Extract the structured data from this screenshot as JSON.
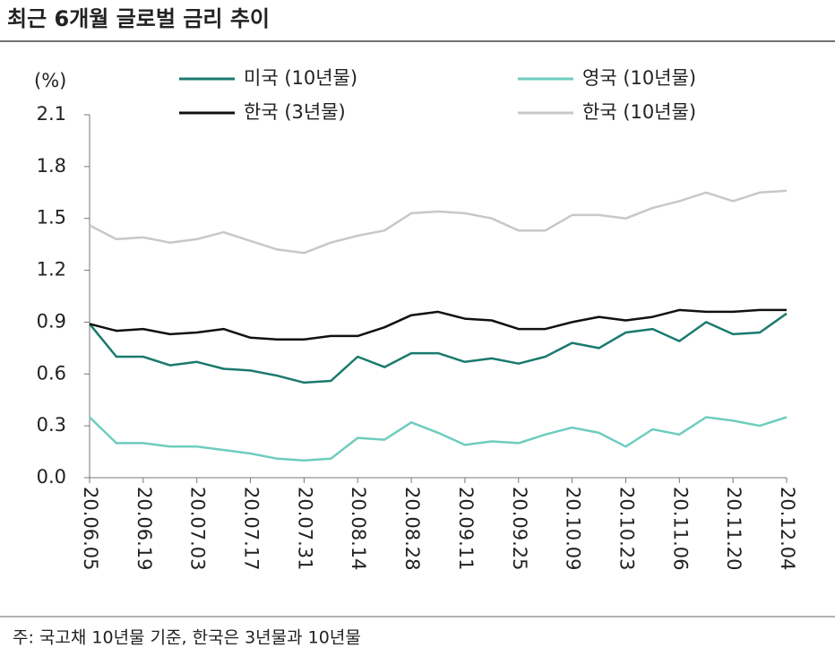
{
  "chart_data": {
    "type": "line",
    "title": "최근 6개월 글로벌 금리 추이",
    "y_label": "(%)",
    "note": "주: 국고채 10년물 기준, 한국은 3년물과 10년물",
    "categories": [
      "20.06.05",
      null,
      "20.06.19",
      null,
      "20.07.03",
      null,
      "20.07.17",
      null,
      "20.07.31",
      null,
      "20.08.14",
      null,
      "20.08.28",
      null,
      "20.09.11",
      null,
      "20.09.25",
      null,
      "20.10.09",
      null,
      "20.10.23",
      null,
      "20.11.06",
      null,
      "20.11.20",
      null,
      "20.12.04"
    ],
    "ylim": [
      0,
      2.1
    ],
    "yticks": [
      {
        "value": 0,
        "label": "0.0"
      },
      0.3,
      0.6,
      0.9,
      1.2,
      1.5,
      1.8,
      2.1
    ],
    "legend": "top",
    "series": [
      {
        "name": "미국 (10년물)",
        "color": "#1a7a6e",
        "values": [
          0.89,
          0.7,
          0.7,
          0.65,
          0.67,
          0.63,
          0.62,
          0.59,
          0.55,
          0.56,
          0.7,
          0.64,
          0.72,
          0.72,
          0.67,
          0.69,
          0.66,
          0.7,
          0.78,
          0.75,
          0.84,
          0.86,
          0.79,
          0.9,
          0.83,
          0.84,
          0.95
        ]
      },
      {
        "name": "영국 (10년물)",
        "color": "#6ecdbe",
        "values": [
          0.35,
          0.2,
          0.2,
          0.18,
          0.18,
          0.16,
          0.14,
          0.11,
          0.1,
          0.11,
          0.23,
          0.22,
          0.32,
          0.26,
          0.19,
          0.21,
          0.2,
          0.25,
          0.29,
          0.26,
          0.18,
          0.28,
          0.25,
          0.35,
          0.33,
          0.3,
          0.35
        ]
      },
      {
        "name": "한국 (3년물)",
        "color": "#111111",
        "values": [
          0.89,
          0.85,
          0.86,
          0.83,
          0.84,
          0.86,
          0.81,
          0.8,
          0.8,
          0.82,
          0.82,
          0.87,
          0.94,
          0.96,
          0.92,
          0.91,
          0.86,
          0.86,
          0.9,
          0.93,
          0.91,
          0.93,
          0.97,
          0.96,
          0.96,
          0.97,
          0.97
        ]
      },
      {
        "name": "한국 (10년물)",
        "color": "#c8c8c8",
        "values": [
          1.46,
          1.38,
          1.39,
          1.36,
          1.38,
          1.42,
          1.37,
          1.32,
          1.3,
          1.36,
          1.4,
          1.43,
          1.53,
          1.54,
          1.53,
          1.5,
          1.43,
          1.43,
          1.52,
          1.52,
          1.5,
          1.56,
          1.6,
          1.65,
          1.6,
          1.65,
          1.66
        ]
      }
    ]
  }
}
